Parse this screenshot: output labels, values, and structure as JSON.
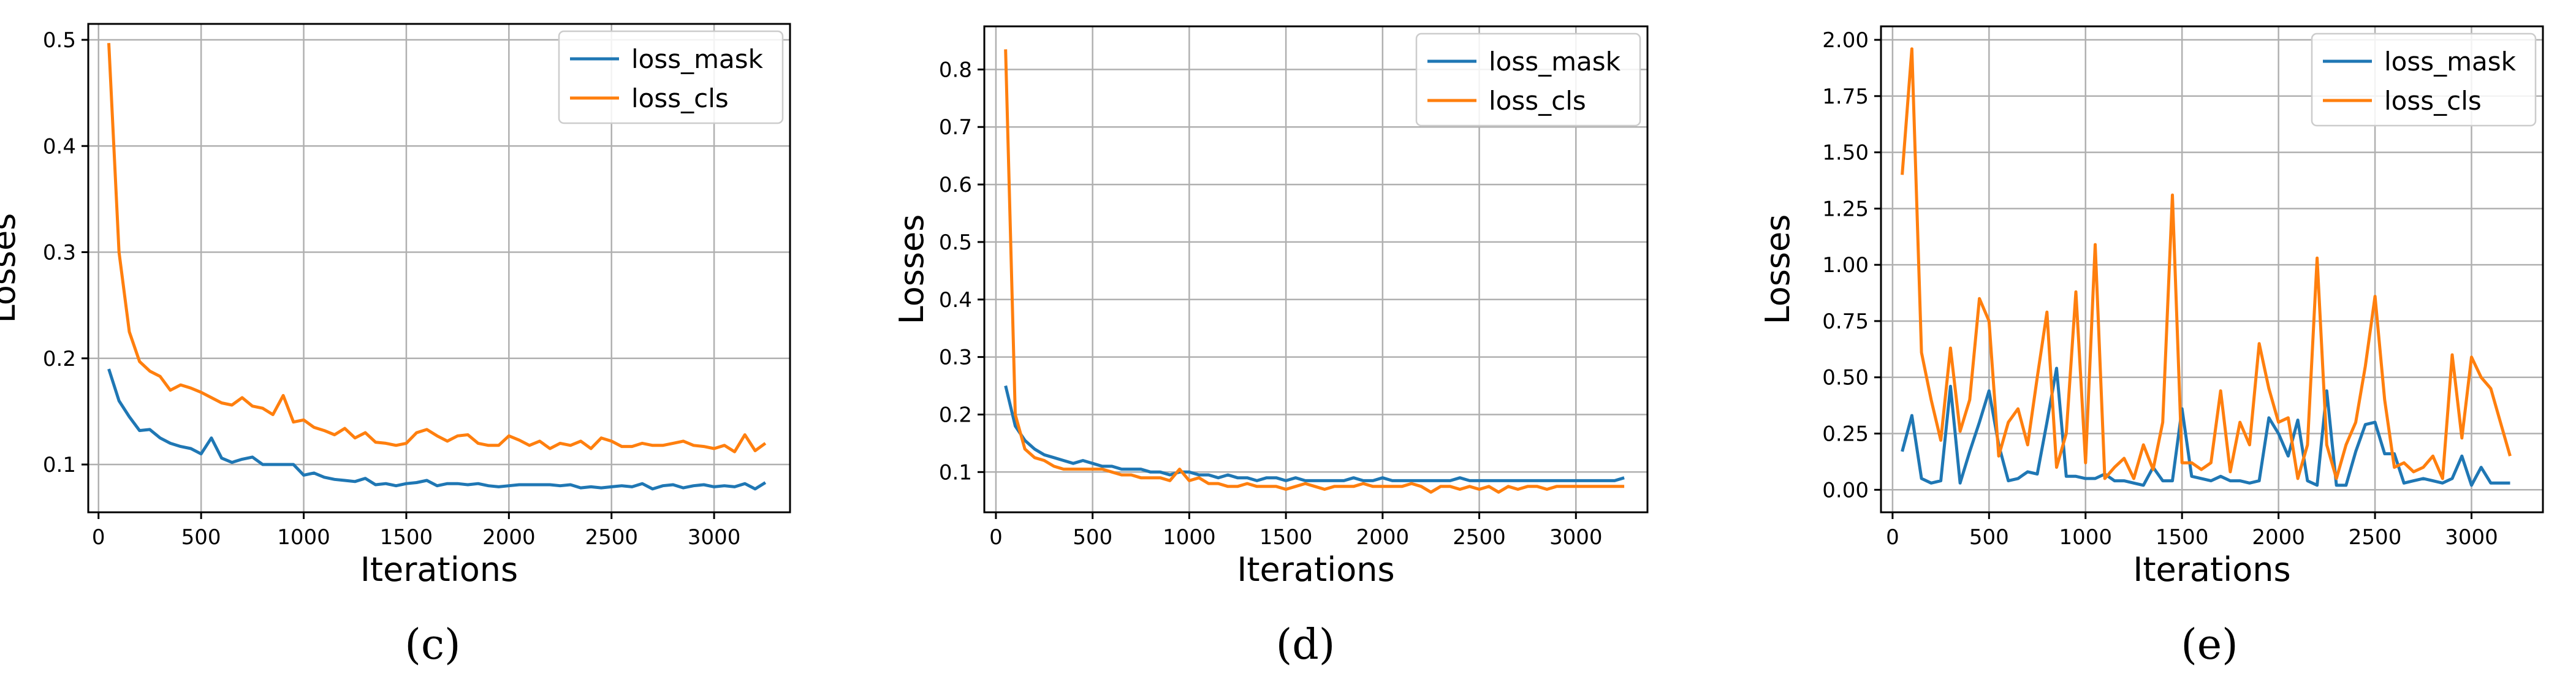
{
  "chart_data": [
    {
      "type": "line",
      "caption": "(c)",
      "xlabel": "Iterations",
      "ylabel": "Losses",
      "xlim": [
        -50,
        3370
      ],
      "ylim": [
        0.055,
        0.515
      ],
      "xticks": [
        0,
        500,
        1000,
        1500,
        2000,
        2500,
        3000
      ],
      "yticks": [
        0.1,
        0.2,
        0.3,
        0.4,
        0.5
      ],
      "ytick_labels": [
        "0.1",
        "0.2",
        "0.3",
        "0.4",
        "0.5"
      ],
      "grid": true,
      "legend": "top-right",
      "series": [
        {
          "name": "loss_mask",
          "color": "#1f77b4",
          "x": [
            50,
            100,
            150,
            200,
            250,
            300,
            350,
            400,
            450,
            500,
            550,
            600,
            650,
            700,
            750,
            800,
            850,
            900,
            950,
            1000,
            1050,
            1100,
            1150,
            1200,
            1250,
            1300,
            1350,
            1400,
            1450,
            1500,
            1550,
            1600,
            1650,
            1700,
            1750,
            1800,
            1850,
            1900,
            1950,
            2000,
            2050,
            2100,
            2150,
            2200,
            2250,
            2300,
            2350,
            2400,
            2450,
            2500,
            2550,
            2600,
            2650,
            2700,
            2750,
            2800,
            2850,
            2900,
            2950,
            3000,
            3050,
            3100,
            3150,
            3200,
            3250
          ],
          "y": [
            0.19,
            0.16,
            0.145,
            0.132,
            0.133,
            0.125,
            0.12,
            0.117,
            0.115,
            0.11,
            0.125,
            0.106,
            0.102,
            0.105,
            0.107,
            0.1,
            0.1,
            0.1,
            0.1,
            0.09,
            0.092,
            0.088,
            0.086,
            0.085,
            0.084,
            0.087,
            0.081,
            0.082,
            0.08,
            0.082,
            0.083,
            0.085,
            0.08,
            0.082,
            0.082,
            0.081,
            0.082,
            0.08,
            0.079,
            0.08,
            0.081,
            0.081,
            0.081,
            0.081,
            0.08,
            0.081,
            0.078,
            0.079,
            0.078,
            0.079,
            0.08,
            0.079,
            0.082,
            0.077,
            0.08,
            0.081,
            0.078,
            0.08,
            0.081,
            0.079,
            0.08,
            0.079,
            0.082,
            0.077,
            0.083
          ]
        },
        {
          "name": "loss_cls",
          "color": "#ff7f0e",
          "x": [
            50,
            100,
            150,
            200,
            250,
            300,
            350,
            400,
            450,
            500,
            550,
            600,
            650,
            700,
            750,
            800,
            850,
            900,
            950,
            1000,
            1050,
            1100,
            1150,
            1200,
            1250,
            1300,
            1350,
            1400,
            1450,
            1500,
            1550,
            1600,
            1650,
            1700,
            1750,
            1800,
            1850,
            1900,
            1950,
            2000,
            2050,
            2100,
            2150,
            2200,
            2250,
            2300,
            2350,
            2400,
            2450,
            2500,
            2550,
            2600,
            2650,
            2700,
            2750,
            2800,
            2850,
            2900,
            2950,
            3000,
            3050,
            3100,
            3150,
            3200,
            3250
          ],
          "y": [
            0.497,
            0.3,
            0.225,
            0.197,
            0.188,
            0.183,
            0.17,
            0.175,
            0.172,
            0.168,
            0.163,
            0.158,
            0.156,
            0.163,
            0.155,
            0.153,
            0.147,
            0.165,
            0.14,
            0.142,
            0.135,
            0.132,
            0.128,
            0.134,
            0.125,
            0.13,
            0.121,
            0.12,
            0.118,
            0.12,
            0.13,
            0.133,
            0.127,
            0.122,
            0.127,
            0.128,
            0.12,
            0.118,
            0.118,
            0.127,
            0.123,
            0.118,
            0.122,
            0.115,
            0.12,
            0.118,
            0.122,
            0.115,
            0.125,
            0.122,
            0.117,
            0.117,
            0.12,
            0.118,
            0.118,
            0.12,
            0.122,
            0.118,
            0.117,
            0.115,
            0.118,
            0.112,
            0.128,
            0.113,
            0.12
          ]
        }
      ]
    },
    {
      "type": "line",
      "caption": "(d)",
      "xlabel": "Iterations",
      "ylabel": "Losses",
      "xlim": [
        -60,
        3370
      ],
      "ylim": [
        0.03,
        0.875
      ],
      "xticks": [
        0,
        500,
        1000,
        1500,
        2000,
        2500,
        3000
      ],
      "yticks": [
        0.1,
        0.2,
        0.3,
        0.4,
        0.5,
        0.6,
        0.7,
        0.8
      ],
      "ytick_labels": [
        "0.1",
        "0.2",
        "0.3",
        "0.4",
        "0.5",
        "0.6",
        "0.7",
        "0.8"
      ],
      "grid": true,
      "legend": "top-right",
      "series": [
        {
          "name": "loss_mask",
          "color": "#1f77b4",
          "x": [
            50,
            100,
            150,
            200,
            250,
            300,
            350,
            400,
            450,
            500,
            550,
            600,
            650,
            700,
            750,
            800,
            850,
            900,
            950,
            1000,
            1050,
            1100,
            1150,
            1200,
            1250,
            1300,
            1350,
            1400,
            1450,
            1500,
            1550,
            1600,
            1650,
            1700,
            1750,
            1800,
            1850,
            1900,
            1950,
            2000,
            2050,
            2100,
            2150,
            2200,
            2250,
            2300,
            2350,
            2400,
            2450,
            2500,
            2550,
            2600,
            2650,
            2700,
            2750,
            2800,
            2850,
            2900,
            2950,
            3000,
            3050,
            3100,
            3150,
            3200,
            3250
          ],
          "y": [
            0.25,
            0.18,
            0.155,
            0.14,
            0.13,
            0.125,
            0.12,
            0.115,
            0.12,
            0.115,
            0.11,
            0.11,
            0.105,
            0.105,
            0.105,
            0.1,
            0.1,
            0.095,
            0.1,
            0.1,
            0.095,
            0.095,
            0.09,
            0.095,
            0.09,
            0.09,
            0.085,
            0.09,
            0.09,
            0.085,
            0.09,
            0.085,
            0.085,
            0.085,
            0.085,
            0.085,
            0.09,
            0.085,
            0.085,
            0.09,
            0.085,
            0.085,
            0.085,
            0.085,
            0.085,
            0.085,
            0.085,
            0.09,
            0.085,
            0.085,
            0.085,
            0.085,
            0.085,
            0.085,
            0.085,
            0.085,
            0.085,
            0.085,
            0.085,
            0.085,
            0.085,
            0.085,
            0.085,
            0.085,
            0.09
          ]
        },
        {
          "name": "loss_cls",
          "color": "#ff7f0e",
          "x": [
            50,
            100,
            150,
            200,
            250,
            300,
            350,
            400,
            450,
            500,
            550,
            600,
            650,
            700,
            750,
            800,
            850,
            900,
            950,
            1000,
            1050,
            1100,
            1150,
            1200,
            1250,
            1300,
            1350,
            1400,
            1450,
            1500,
            1550,
            1600,
            1650,
            1700,
            1750,
            1800,
            1850,
            1900,
            1950,
            2000,
            2050,
            2100,
            2150,
            2200,
            2250,
            2300,
            2350,
            2400,
            2450,
            2500,
            2550,
            2600,
            2650,
            2700,
            2750,
            2800,
            2850,
            2900,
            2950,
            3000,
            3050,
            3100,
            3150,
            3200,
            3250
          ],
          "y": [
            0.835,
            0.2,
            0.14,
            0.125,
            0.12,
            0.11,
            0.105,
            0.105,
            0.105,
            0.105,
            0.105,
            0.1,
            0.095,
            0.095,
            0.09,
            0.09,
            0.09,
            0.085,
            0.105,
            0.085,
            0.09,
            0.08,
            0.08,
            0.075,
            0.075,
            0.08,
            0.075,
            0.075,
            0.075,
            0.07,
            0.075,
            0.08,
            0.075,
            0.07,
            0.075,
            0.075,
            0.075,
            0.08,
            0.075,
            0.075,
            0.075,
            0.075,
            0.08,
            0.075,
            0.065,
            0.075,
            0.075,
            0.07,
            0.075,
            0.07,
            0.075,
            0.065,
            0.075,
            0.07,
            0.075,
            0.075,
            0.07,
            0.075,
            0.075,
            0.075,
            0.075,
            0.075,
            0.075,
            0.075,
            0.075
          ]
        }
      ]
    },
    {
      "type": "line",
      "caption": "(e)",
      "xlabel": "Iterations",
      "ylabel": "Losses",
      "xlim": [
        -60,
        3370
      ],
      "ylim": [
        -0.1,
        2.06
      ],
      "xticks": [
        0,
        500,
        1000,
        1500,
        2000,
        2500,
        3000
      ],
      "yticks": [
        0.0,
        0.25,
        0.5,
        0.75,
        1.0,
        1.25,
        1.5,
        1.75,
        2.0
      ],
      "ytick_labels": [
        "0.00",
        "0.25",
        "0.50",
        "0.75",
        "1.00",
        "1.25",
        "1.50",
        "1.75",
        "2.00"
      ],
      "grid": true,
      "legend": "top-right",
      "series": [
        {
          "name": "loss_mask",
          "color": "#1f77b4",
          "x": [
            50,
            100,
            150,
            200,
            250,
            300,
            350,
            400,
            450,
            500,
            550,
            600,
            650,
            700,
            750,
            800,
            850,
            900,
            950,
            1000,
            1050,
            1100,
            1150,
            1200,
            1250,
            1300,
            1350,
            1400,
            1450,
            1500,
            1550,
            1600,
            1650,
            1700,
            1750,
            1800,
            1850,
            1900,
            1950,
            2000,
            2050,
            2100,
            2150,
            2200,
            2250,
            2300,
            2350,
            2400,
            2450,
            2500,
            2550,
            2600,
            2650,
            2700,
            2750,
            2800,
            2850,
            2900,
            2950,
            3000,
            3050,
            3100,
            3150,
            3200
          ],
          "y": [
            0.17,
            0.33,
            0.05,
            0.03,
            0.04,
            0.46,
            0.03,
            0.17,
            0.3,
            0.44,
            0.2,
            0.04,
            0.05,
            0.08,
            0.07,
            0.3,
            0.54,
            0.06,
            0.06,
            0.05,
            0.05,
            0.07,
            0.04,
            0.04,
            0.03,
            0.02,
            0.1,
            0.04,
            0.04,
            0.36,
            0.06,
            0.05,
            0.04,
            0.06,
            0.04,
            0.04,
            0.03,
            0.04,
            0.32,
            0.25,
            0.15,
            0.31,
            0.04,
            0.02,
            0.44,
            0.02,
            0.02,
            0.17,
            0.29,
            0.3,
            0.16,
            0.16,
            0.03,
            0.04,
            0.05,
            0.04,
            0.03,
            0.05,
            0.15,
            0.02,
            0.1,
            0.03,
            0.03,
            0.03
          ]
        },
        {
          "name": "loss_cls",
          "color": "#ff7f0e",
          "x": [
            50,
            100,
            150,
            200,
            250,
            300,
            350,
            400,
            450,
            500,
            550,
            600,
            650,
            700,
            750,
            800,
            850,
            900,
            950,
            1000,
            1050,
            1100,
            1150,
            1200,
            1250,
            1300,
            1350,
            1400,
            1450,
            1500,
            1550,
            1600,
            1650,
            1700,
            1750,
            1800,
            1850,
            1900,
            1950,
            2000,
            2050,
            2100,
            2150,
            2200,
            2250,
            2300,
            2350,
            2400,
            2450,
            2500,
            2550,
            2600,
            2650,
            2700,
            2750,
            2800,
            2850,
            2900,
            2950,
            3000,
            3050,
            3100,
            3150,
            3200
          ],
          "y": [
            1.4,
            1.96,
            0.61,
            0.4,
            0.22,
            0.63,
            0.26,
            0.4,
            0.85,
            0.75,
            0.15,
            0.3,
            0.36,
            0.2,
            0.5,
            0.79,
            0.1,
            0.25,
            0.88,
            0.12,
            1.09,
            0.05,
            0.1,
            0.14,
            0.05,
            0.2,
            0.09,
            0.3,
            1.31,
            0.12,
            0.12,
            0.09,
            0.12,
            0.44,
            0.08,
            0.3,
            0.2,
            0.65,
            0.45,
            0.3,
            0.32,
            0.05,
            0.2,
            1.03,
            0.2,
            0.05,
            0.2,
            0.3,
            0.55,
            0.86,
            0.4,
            0.1,
            0.12,
            0.08,
            0.1,
            0.15,
            0.05,
            0.6,
            0.23,
            0.59,
            0.5,
            0.45,
            0.3,
            0.15
          ]
        }
      ]
    }
  ]
}
